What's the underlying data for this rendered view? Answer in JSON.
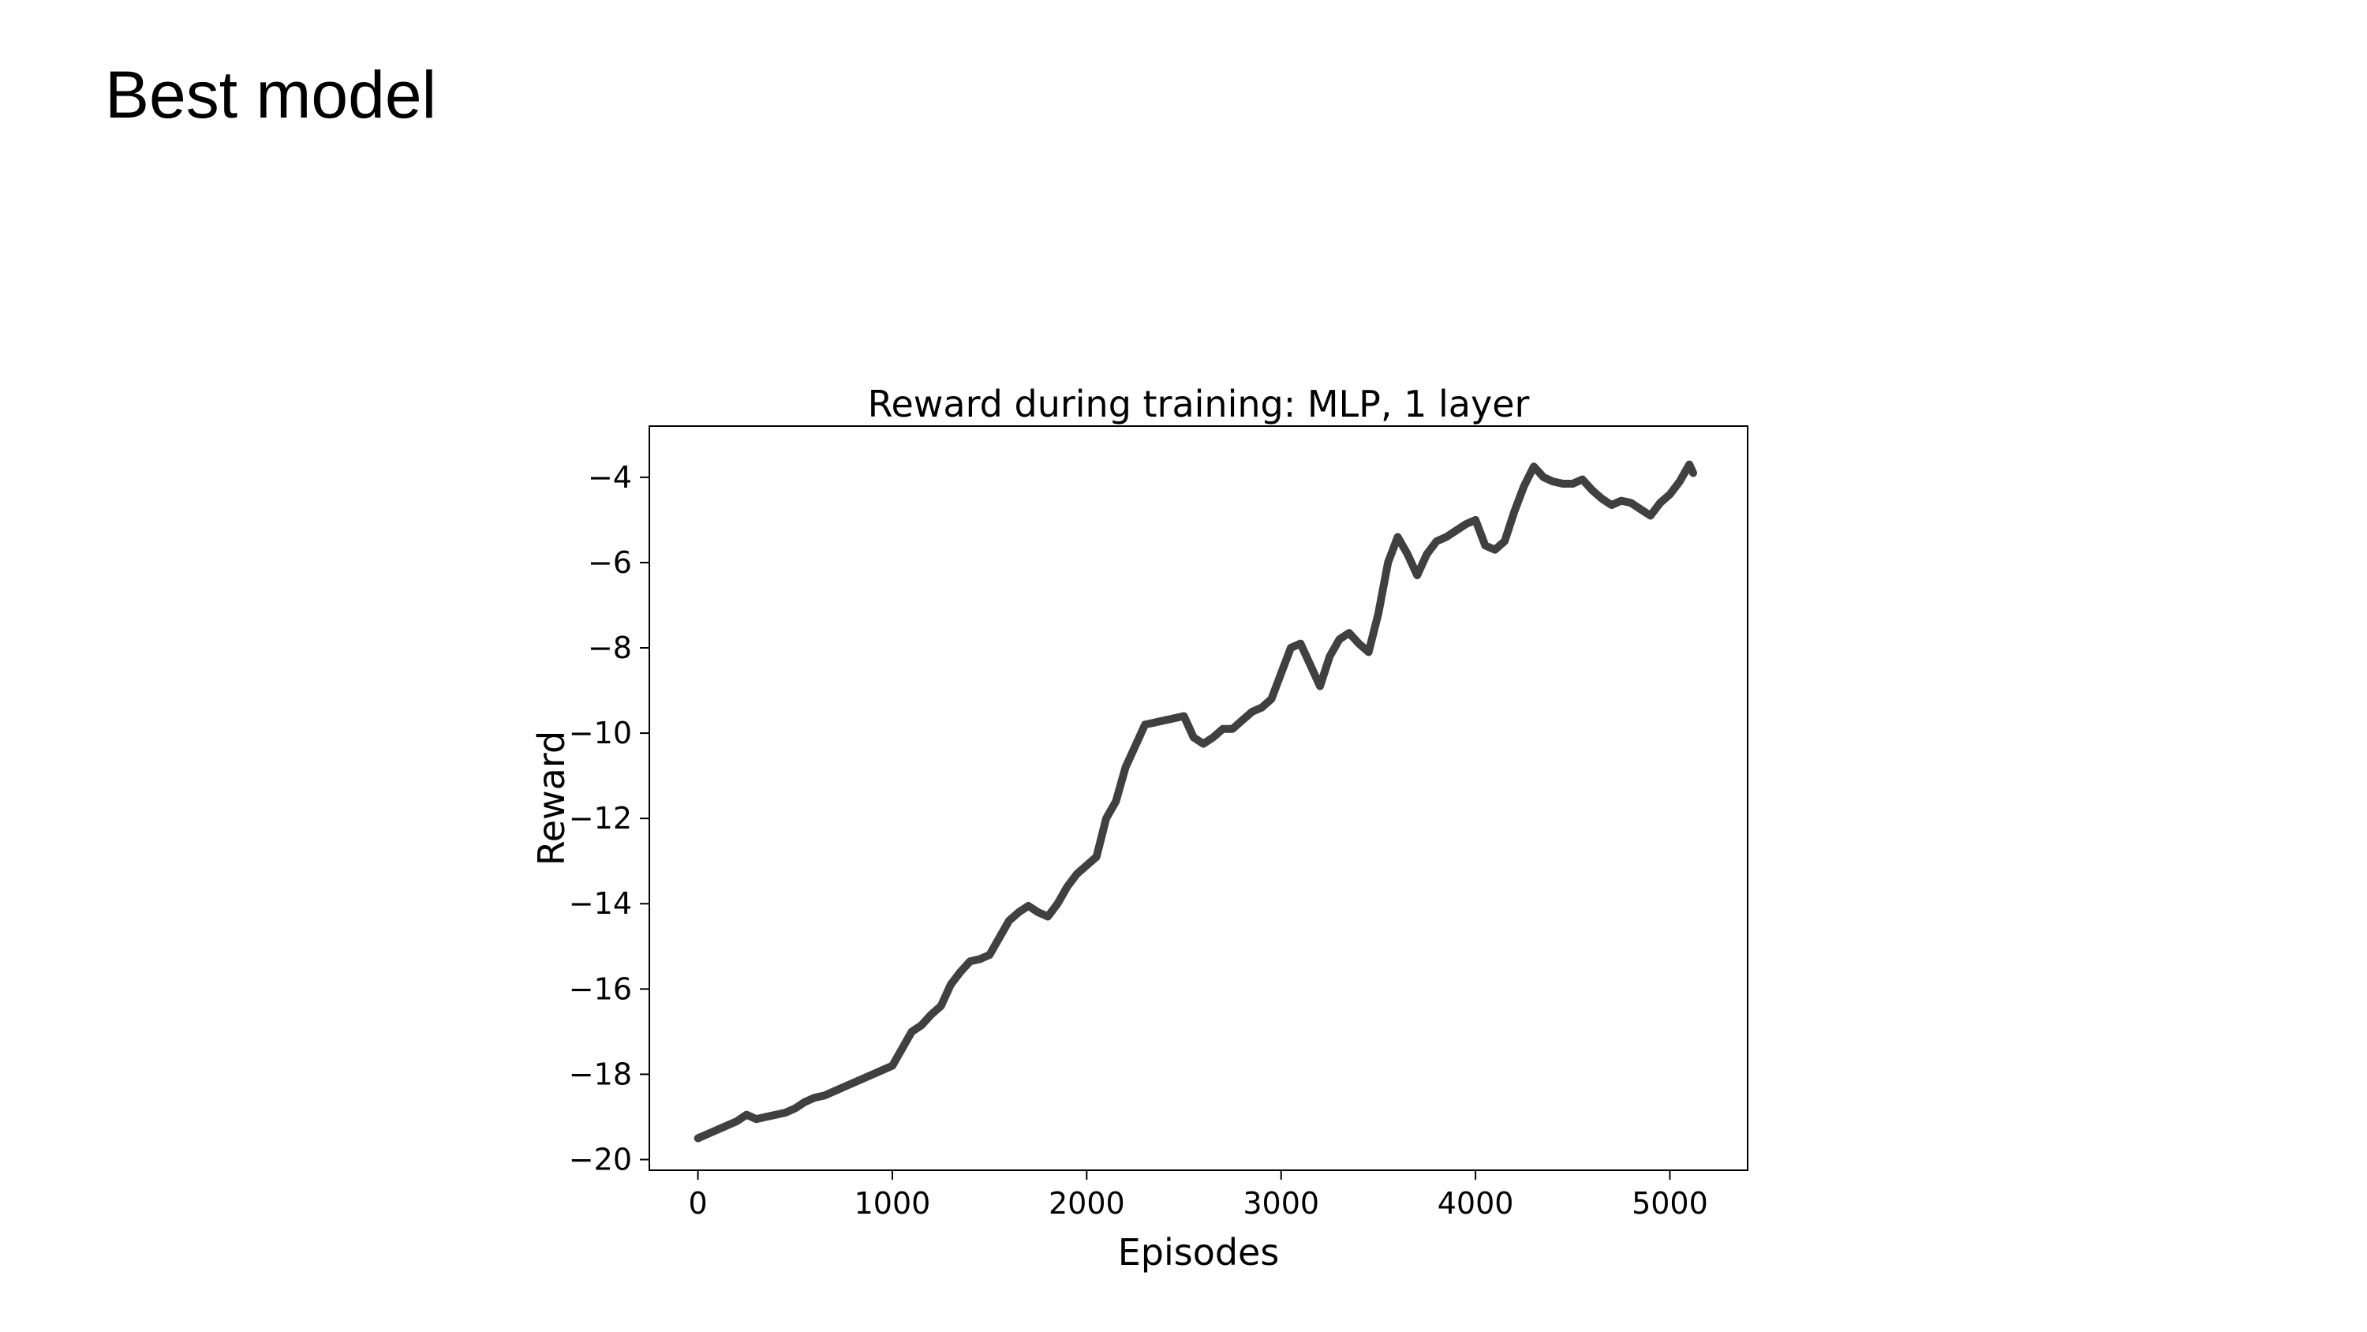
{
  "slide": {
    "title": "Best model"
  },
  "chart_data": {
    "type": "line",
    "title": "Reward during training: MLP, 1 layer",
    "xlabel": "Episodes",
    "ylabel": "Reward",
    "xlim": [
      -250,
      5400
    ],
    "ylim": [
      -20.25,
      -2.8
    ],
    "xticks": [
      0,
      1000,
      2000,
      3000,
      4000,
      5000
    ],
    "xtick_labels": [
      "0",
      "1000",
      "2000",
      "3000",
      "4000",
      "5000"
    ],
    "yticks": [
      -4,
      -6,
      -8,
      -10,
      -12,
      -14,
      -16,
      -18,
      -20
    ],
    "ytick_labels": [
      "−4",
      "−6",
      "−8",
      "−10",
      "−12",
      "−14",
      "−16",
      "−18",
      "−20"
    ],
    "grid": false,
    "line_color": "#404040",
    "series": [
      {
        "x": [
          0,
          50,
          100,
          150,
          200,
          250,
          300,
          350,
          400,
          450,
          500,
          550,
          600,
          650,
          700,
          750,
          800,
          850,
          900,
          950,
          1000,
          1050,
          1100,
          1150,
          1200,
          1250,
          1300,
          1350,
          1400,
          1450,
          1500,
          1550,
          1600,
          1650,
          1700,
          1750,
          1800,
          1850,
          1900,
          1950,
          2000,
          2050,
          2100,
          2150,
          2200,
          2250,
          2300,
          2350,
          2400,
          2450,
          2500,
          2550,
          2600,
          2650,
          2700,
          2750,
          2800,
          2850,
          2900,
          2950,
          3000,
          3050,
          3100,
          3150,
          3200,
          3250,
          3300,
          3350,
          3400,
          3450,
          3500,
          3550,
          3600,
          3650,
          3700,
          3750,
          3800,
          3850,
          3900,
          3950,
          4000,
          4050,
          4100,
          4150,
          4200,
          4250,
          4300,
          4350,
          4400,
          4450,
          4500,
          4550,
          4600,
          4650,
          4700,
          4750,
          4800,
          4850,
          4900,
          4950,
          5000,
          5050,
          5100,
          5120
        ],
        "values": [
          -19.5,
          -19.4,
          -19.3,
          -19.2,
          -19.1,
          -18.95,
          -19.05,
          -19.0,
          -18.95,
          -18.9,
          -18.8,
          -18.65,
          -18.55,
          -18.5,
          -18.4,
          -18.3,
          -18.2,
          -18.1,
          -18.0,
          -17.9,
          -17.8,
          -17.4,
          -17.0,
          -16.85,
          -16.6,
          -16.4,
          -15.9,
          -15.6,
          -15.35,
          -15.3,
          -15.2,
          -14.8,
          -14.4,
          -14.2,
          -14.05,
          -14.2,
          -14.3,
          -14.0,
          -13.6,
          -13.3,
          -13.1,
          -12.9,
          -12.0,
          -11.6,
          -10.8,
          -10.3,
          -9.8,
          -9.75,
          -9.7,
          -9.65,
          -9.6,
          -10.1,
          -10.25,
          -10.1,
          -9.9,
          -9.9,
          -9.7,
          -9.5,
          -9.4,
          -9.2,
          -8.6,
          -8.0,
          -7.9,
          -8.4,
          -8.9,
          -8.2,
          -7.8,
          -7.65,
          -7.9,
          -8.1,
          -7.2,
          -6.0,
          -5.4,
          -5.8,
          -6.3,
          -5.8,
          -5.5,
          -5.4,
          -5.25,
          -5.1,
          -5.0,
          -5.6,
          -5.7,
          -5.5,
          -4.8,
          -4.2,
          -3.75,
          -4.0,
          -4.1,
          -4.15,
          -4.15,
          -4.05,
          -4.3,
          -4.5,
          -4.65,
          -4.55,
          -4.6,
          -4.75,
          -4.9,
          -4.6,
          -4.4,
          -4.1,
          -3.7,
          -3.9
        ]
      }
    ]
  }
}
